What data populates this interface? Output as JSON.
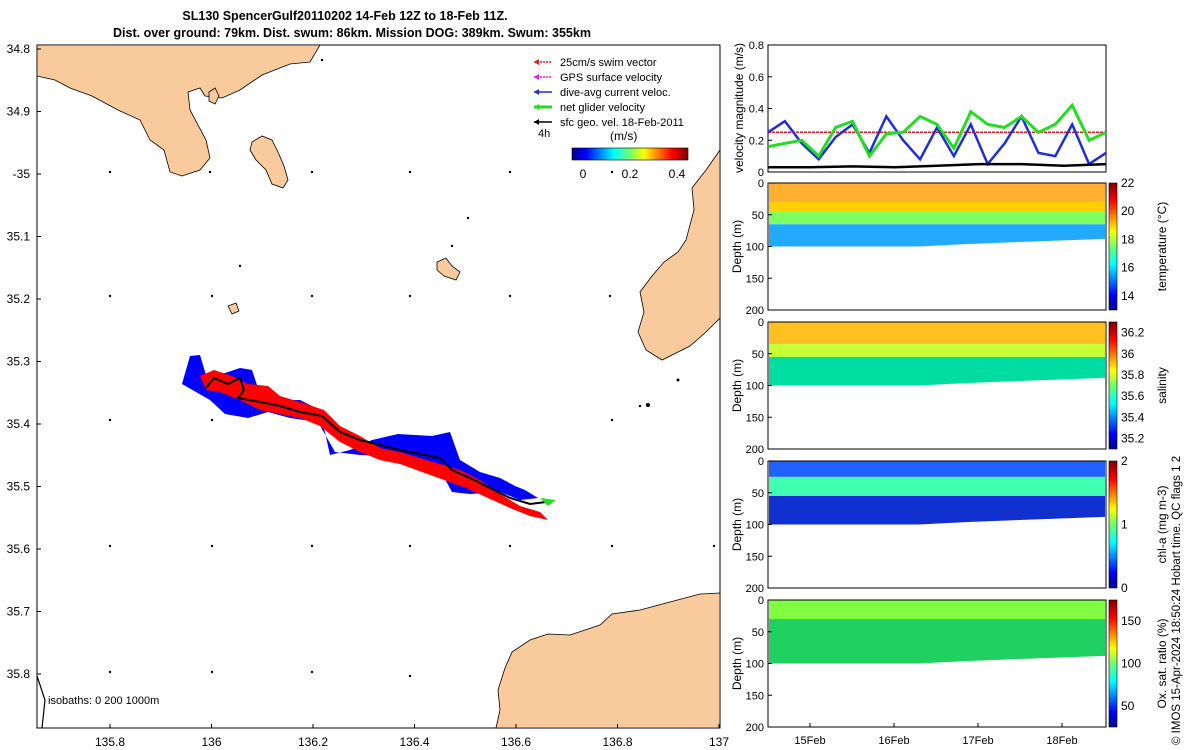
{
  "title": {
    "line1": "SL130 SpencerGulf20110202 14-Feb 12Z to 18-Feb 11Z.",
    "line2": "Dist. over ground: 79km. Dist. swum: 86km. Mission DOG: 389km. Swum: 355km"
  },
  "map": {
    "lat_ticks": [
      "34.8",
      "34.9",
      "-35",
      "35.1",
      "35.2",
      "35.3",
      "35.4",
      "35.5",
      "35.6",
      "35.7",
      "35.8"
    ],
    "lon_ticks": [
      "135.8",
      "136",
      "136.2",
      "136.4",
      "136.6",
      "136.8",
      "137"
    ],
    "isobaths_label": "isobaths: 0   200  1000m",
    "legend": [
      {
        "label": "25cm/s swim vector",
        "color": "#e31a1c"
      },
      {
        "label": "GPS surface velocity",
        "color": "#e51ed8"
      },
      {
        "label": "dive-avg current veloc.",
        "color": "#1f2fd6"
      },
      {
        "label": "net glider velocity",
        "color": "#22dd22"
      },
      {
        "label": "sfc geo. vel. 18-Feb-2011",
        "color": "#000000"
      }
    ],
    "time_marker": "4h",
    "colorbar_label": "(m/s)",
    "colorbar_ticks": [
      "0",
      "0.2",
      "0.4"
    ]
  },
  "chart_data": [
    {
      "type": "line",
      "title": "",
      "ylabel": "velocity magnitude (m/s)",
      "ylim": [
        0,
        0.8
      ],
      "yticks": [
        "0",
        "0.2",
        "0.4",
        "0.6",
        "0.8"
      ],
      "x_range_days": [
        14.5,
        18.5
      ],
      "series": [
        {
          "name": "25cm/s swim vector",
          "color": "#e31a1c",
          "x": [
            14.5,
            18.5
          ],
          "values": [
            0.25,
            0.25
          ]
        },
        {
          "name": "dive-avg current veloc.",
          "color": "#1f2fd6",
          "x": [
            14.5,
            14.7,
            14.9,
            15.1,
            15.3,
            15.5,
            15.7,
            15.9,
            16.1,
            16.3,
            16.5,
            16.7,
            16.9,
            17.1,
            17.3,
            17.5,
            17.7,
            17.9,
            18.1,
            18.3,
            18.5
          ],
          "values": [
            0.25,
            0.32,
            0.18,
            0.08,
            0.22,
            0.3,
            0.12,
            0.35,
            0.2,
            0.08,
            0.28,
            0.1,
            0.3,
            0.05,
            0.18,
            0.35,
            0.12,
            0.1,
            0.3,
            0.05,
            0.12
          ]
        },
        {
          "name": "net glider velocity",
          "color": "#22dd22",
          "x": [
            14.5,
            14.7,
            14.9,
            15.1,
            15.3,
            15.5,
            15.7,
            15.9,
            16.1,
            16.3,
            16.5,
            16.7,
            16.9,
            17.1,
            17.3,
            17.5,
            17.7,
            17.9,
            18.1,
            18.3,
            18.5
          ],
          "values": [
            0.16,
            0.18,
            0.2,
            0.1,
            0.28,
            0.32,
            0.1,
            0.24,
            0.25,
            0.35,
            0.3,
            0.15,
            0.38,
            0.3,
            0.28,
            0.35,
            0.25,
            0.3,
            0.42,
            0.2,
            0.25
          ]
        },
        {
          "name": "sfc geo. vel. 18-Feb-2011",
          "color": "#000000",
          "x": [
            14.5,
            15.0,
            15.5,
            16.0,
            16.5,
            17.0,
            17.5,
            18.0,
            18.5
          ],
          "values": [
            0.03,
            0.03,
            0.035,
            0.03,
            0.04,
            0.05,
            0.05,
            0.04,
            0.05
          ]
        }
      ]
    },
    {
      "type": "heatmap",
      "ylabel": "Depth (m)",
      "ylim": [
        0,
        200
      ],
      "yticks": [
        "0",
        "50",
        "100",
        "150",
        "200"
      ],
      "colorbar_label": "temperature (°C)",
      "colorbar_ticks": [
        "14",
        "16",
        "18",
        "20",
        "22"
      ],
      "crange": [
        13,
        22
      ]
    },
    {
      "type": "heatmap",
      "ylabel": "Depth (m)",
      "ylim": [
        0,
        200
      ],
      "yticks": [
        "0",
        "50",
        "100",
        "150",
        "200"
      ],
      "colorbar_label": "salinity",
      "colorbar_ticks": [
        "35.2",
        "35.4",
        "35.6",
        "35.8",
        "36",
        "36.2"
      ],
      "crange": [
        35.1,
        36.3
      ]
    },
    {
      "type": "heatmap",
      "ylabel": "Depth (m)",
      "ylim": [
        0,
        200
      ],
      "yticks": [
        "0",
        "50",
        "100",
        "150",
        "200"
      ],
      "colorbar_label": "chl-a (mg m-3)",
      "colorbar_ticks": [
        "0",
        "1",
        "2"
      ],
      "crange": [
        0,
        2
      ]
    },
    {
      "type": "heatmap",
      "ylabel": "Depth (m)",
      "ylim": [
        0,
        200
      ],
      "yticks": [
        "0",
        "50",
        "100",
        "150",
        "200"
      ],
      "colorbar_label": "Ox. sat. ratio (%)",
      "colorbar_ticks": [
        "50",
        "100",
        "150"
      ],
      "crange": [
        25,
        175
      ],
      "xticks": [
        "15Feb",
        "16Feb",
        "17Feb",
        "18Feb"
      ]
    }
  ],
  "footer": {
    "copyright": "© IMOS 15-Apr-2024 18:50:24 Hobart time. QC flags 1  2"
  }
}
